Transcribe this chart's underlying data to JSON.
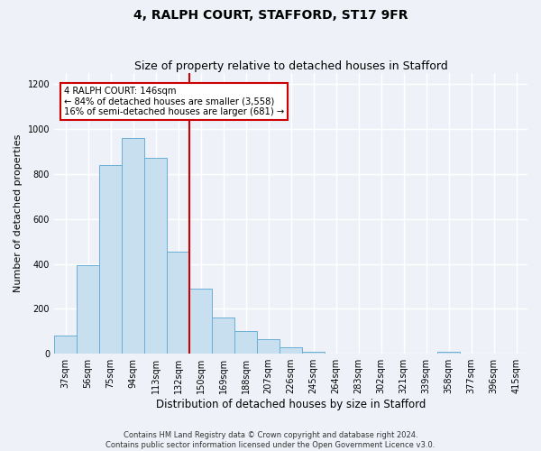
{
  "title": "4, RALPH COURT, STAFFORD, ST17 9FR",
  "subtitle": "Size of property relative to detached houses in Stafford",
  "xlabel": "Distribution of detached houses by size in Stafford",
  "ylabel": "Number of detached properties",
  "categories": [
    "37sqm",
    "56sqm",
    "75sqm",
    "94sqm",
    "113sqm",
    "132sqm",
    "150sqm",
    "169sqm",
    "188sqm",
    "207sqm",
    "226sqm",
    "245sqm",
    "264sqm",
    "283sqm",
    "302sqm",
    "321sqm",
    "339sqm",
    "358sqm",
    "377sqm",
    "396sqm",
    "415sqm"
  ],
  "values": [
    80,
    395,
    840,
    960,
    870,
    455,
    290,
    160,
    100,
    65,
    30,
    10,
    0,
    0,
    0,
    0,
    0,
    10,
    0,
    0,
    0
  ],
  "bar_color": "#c8dff0",
  "bar_edge_color": "#6aaed6",
  "vline_x_index": 6,
  "vline_color": "#cc0000",
  "annotation_text": "4 RALPH COURT: 146sqm\n← 84% of detached houses are smaller (3,558)\n16% of semi-detached houses are larger (681) →",
  "annotation_box_color": "#ffffff",
  "annotation_box_edge": "#cc0000",
  "ylim": [
    0,
    1250
  ],
  "yticks": [
    0,
    200,
    400,
    600,
    800,
    1000,
    1200
  ],
  "footer": "Contains HM Land Registry data © Crown copyright and database right 2024.\nContains public sector information licensed under the Open Government Licence v3.0.",
  "bg_color": "#eef2f8",
  "plot_bg_color": "#eef2f8",
  "grid_color": "#ffffff",
  "title_fontsize": 10,
  "subtitle_fontsize": 9,
  "tick_fontsize": 7,
  "ylabel_fontsize": 8,
  "xlabel_fontsize": 8.5
}
